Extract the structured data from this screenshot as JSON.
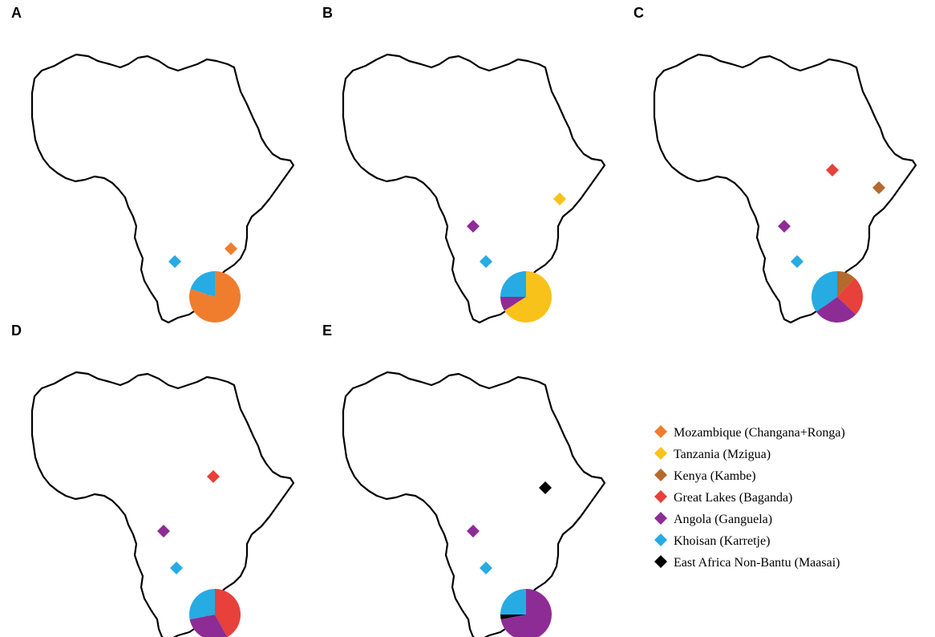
{
  "colors": {
    "mozambique": "#F07D2E",
    "tanzania": "#F9C21A",
    "kenya": "#B36A2C",
    "great_lakes": "#E8403A",
    "angola": "#8E2C96",
    "khoisan": "#27ABE3",
    "east_africa_non_bantu": "#000000"
  },
  "legend": [
    {
      "key": "mozambique",
      "label": "Mozambique (Changana+Ronga)"
    },
    {
      "key": "tanzania",
      "label": "Tanzania (Mzigua)"
    },
    {
      "key": "kenya",
      "label": "Kenya (Kambe)"
    },
    {
      "key": "great_lakes",
      "label": "Great Lakes (Baganda)"
    },
    {
      "key": "angola",
      "label": "Angola (Ganguela)"
    },
    {
      "key": "khoisan",
      "label": "Khoisan (Karretje)"
    },
    {
      "key": "east_africa_non_bantu",
      "label": "East Africa Non-Bantu (Maasai)"
    }
  ],
  "panels": [
    {
      "label": "A",
      "sources": [
        "khoisan",
        "mozambique"
      ],
      "pie": [
        {
          "key": "mozambique",
          "fraction": 0.8
        },
        {
          "key": "khoisan",
          "fraction": 0.2
        }
      ]
    },
    {
      "label": "B",
      "sources": [
        "angola",
        "khoisan",
        "tanzania"
      ],
      "pie": [
        {
          "key": "tanzania",
          "fraction": 0.66
        },
        {
          "key": "angola",
          "fraction": 0.09
        },
        {
          "key": "khoisan",
          "fraction": 0.25
        }
      ]
    },
    {
      "label": "C",
      "sources": [
        "great_lakes",
        "kenya",
        "angola",
        "khoisan"
      ],
      "pie": [
        {
          "key": "kenya",
          "fraction": 0.12
        },
        {
          "key": "great_lakes",
          "fraction": 0.25
        },
        {
          "key": "angola",
          "fraction": 0.28
        },
        {
          "key": "khoisan",
          "fraction": 0.35
        }
      ]
    },
    {
      "label": "D",
      "sources": [
        "great_lakes",
        "angola",
        "khoisan"
      ],
      "pie": [
        {
          "key": "great_lakes",
          "fraction": 0.42
        },
        {
          "key": "angola",
          "fraction": 0.3
        },
        {
          "key": "khoisan",
          "fraction": 0.28
        }
      ]
    },
    {
      "label": "E",
      "sources": [
        "east_africa_non_bantu",
        "angola",
        "khoisan"
      ],
      "pie": [
        {
          "key": "angola",
          "fraction": 0.72
        },
        {
          "key": "east_africa_non_bantu",
          "fraction": 0.03
        },
        {
          "key": "khoisan",
          "fraction": 0.25
        }
      ]
    }
  ]
}
